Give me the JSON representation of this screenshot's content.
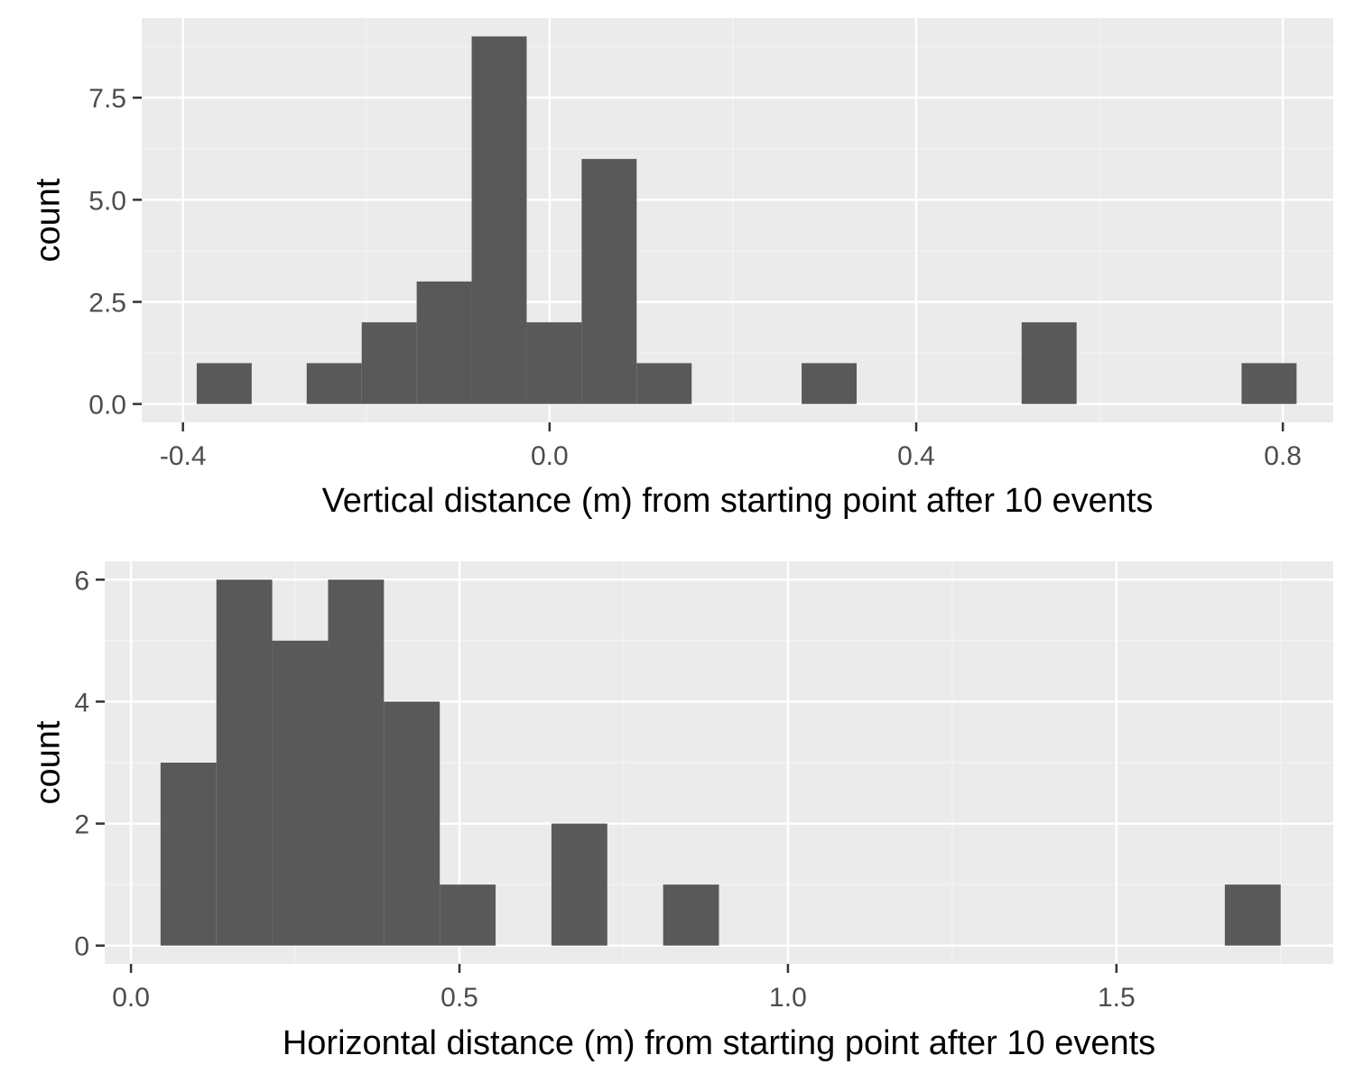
{
  "colors": {
    "panel_background": "#ebebeb",
    "grid_major": "#ffffff",
    "grid_minor": "#f4f4f4",
    "bar_fill": "#595959",
    "tick_text": "#4d4d4d",
    "tick_mark": "#333333",
    "axis_title_text": "#000000"
  },
  "chart_data": [
    {
      "type": "bar",
      "subtype": "histogram",
      "title": "",
      "xlabel": "Vertical distance (m) from starting point after 10 events",
      "ylabel": "count",
      "xlim": [
        -0.445,
        0.855
      ],
      "ylim": [
        -0.45,
        9.45
      ],
      "x_ticks": [
        -0.4,
        0.0,
        0.4,
        0.8
      ],
      "x_tick_labels": [
        "-0.4",
        "0.0",
        "0.4",
        "0.8"
      ],
      "x_minor_ticks": [
        -0.2,
        0.2,
        0.6
      ],
      "y_ticks": [
        0,
        2.5,
        5,
        7.5
      ],
      "y_tick_labels": [
        "0.0",
        "2.5",
        "5.0",
        "7.5"
      ],
      "y_minor_ticks": [
        1.25,
        3.75,
        6.25,
        8.75
      ],
      "grid": true,
      "legend": "none",
      "bins": [
        {
          "x_start": -0.385,
          "x_end": -0.325,
          "count": 1
        },
        {
          "x_start": -0.265,
          "x_end": -0.205,
          "count": 1
        },
        {
          "x_start": -0.205,
          "x_end": -0.145,
          "count": 2
        },
        {
          "x_start": -0.145,
          "x_end": -0.085,
          "count": 3
        },
        {
          "x_start": -0.085,
          "x_end": -0.025,
          "count": 9
        },
        {
          "x_start": -0.025,
          "x_end": 0.035,
          "count": 2
        },
        {
          "x_start": 0.035,
          "x_end": 0.095,
          "count": 6
        },
        {
          "x_start": 0.095,
          "x_end": 0.155,
          "count": 1
        },
        {
          "x_start": 0.275,
          "x_end": 0.335,
          "count": 1
        },
        {
          "x_start": 0.515,
          "x_end": 0.575,
          "count": 2
        },
        {
          "x_start": 0.755,
          "x_end": 0.815,
          "count": 1
        }
      ]
    },
    {
      "type": "bar",
      "subtype": "histogram",
      "title": "",
      "xlabel": "Horizontal distance (m) from starting point after 10 events",
      "ylabel": "count",
      "xlim": [
        -0.04,
        1.83
      ],
      "ylim": [
        -0.3,
        6.3
      ],
      "x_ticks": [
        0.0,
        0.5,
        1.0,
        1.5
      ],
      "x_tick_labels": [
        "0.0",
        "0.5",
        "1.0",
        "1.5"
      ],
      "x_minor_ticks": [
        0.25,
        0.75,
        1.25,
        1.75
      ],
      "y_ticks": [
        0,
        2,
        4,
        6
      ],
      "y_tick_labels": [
        "0",
        "2",
        "4",
        "6"
      ],
      "y_minor_ticks": [
        1,
        3,
        5
      ],
      "grid": true,
      "legend": "none",
      "bins": [
        {
          "x_start": 0.045,
          "x_end": 0.13,
          "count": 3
        },
        {
          "x_start": 0.13,
          "x_end": 0.215,
          "count": 6
        },
        {
          "x_start": 0.215,
          "x_end": 0.3,
          "count": 5
        },
        {
          "x_start": 0.3,
          "x_end": 0.385,
          "count": 6
        },
        {
          "x_start": 0.385,
          "x_end": 0.47,
          "count": 4
        },
        {
          "x_start": 0.47,
          "x_end": 0.555,
          "count": 1
        },
        {
          "x_start": 0.64,
          "x_end": 0.725,
          "count": 2
        },
        {
          "x_start": 0.81,
          "x_end": 0.895,
          "count": 1
        },
        {
          "x_start": 1.665,
          "x_end": 1.75,
          "count": 1
        }
      ]
    }
  ]
}
